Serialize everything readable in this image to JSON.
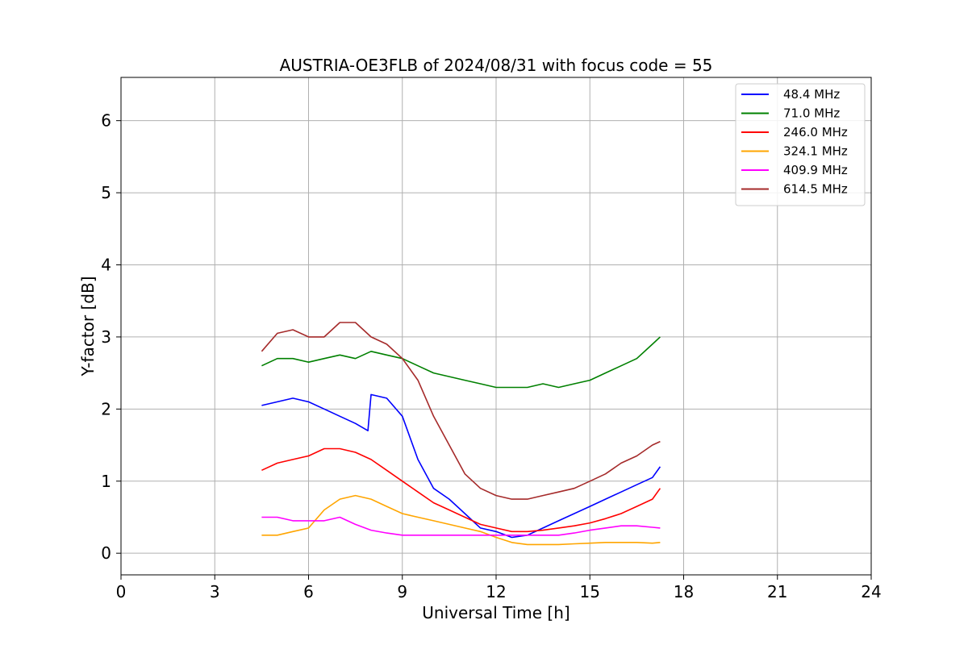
{
  "chart_data": {
    "type": "line",
    "title": "AUSTRIA-OE3FLB of 2024/08/31 with focus code = 55",
    "xlabel": "Universal Time [h]",
    "ylabel": "Y-factor [dB]",
    "xlim": [
      0,
      24
    ],
    "ylim": [
      -0.3,
      6.6
    ],
    "xticks": [
      "0",
      "3",
      "6",
      "9",
      "12",
      "15",
      "18",
      "21",
      "24"
    ],
    "yticks": [
      "0",
      "1",
      "2",
      "3",
      "4",
      "5",
      "6"
    ],
    "grid": true,
    "legend_position": "top-right",
    "series": [
      {
        "name": "48.4 MHz",
        "color": "#0000ff",
        "x": [
          4.5,
          5.0,
          5.5,
          6.0,
          6.5,
          7.0,
          7.5,
          7.9,
          8.0,
          8.5,
          9.0,
          9.5,
          10.0,
          10.5,
          11.0,
          11.5,
          12.0,
          12.5,
          13.0,
          13.5,
          14.0,
          14.5,
          15.0,
          15.5,
          16.0,
          16.5,
          17.0,
          17.25
        ],
        "values": [
          2.05,
          2.1,
          2.15,
          2.1,
          2.0,
          1.9,
          1.8,
          1.7,
          2.2,
          2.15,
          1.9,
          1.3,
          0.9,
          0.75,
          0.55,
          0.35,
          0.3,
          0.22,
          0.25,
          0.35,
          0.45,
          0.55,
          0.65,
          0.75,
          0.85,
          0.95,
          1.05,
          1.2
        ]
      },
      {
        "name": "71.0 MHz",
        "color": "#008000",
        "x": [
          4.5,
          5.0,
          5.5,
          6.0,
          6.5,
          7.0,
          7.5,
          8.0,
          8.5,
          9.0,
          9.5,
          10.0,
          10.5,
          11.0,
          11.5,
          12.0,
          12.5,
          13.0,
          13.5,
          14.0,
          14.5,
          15.0,
          15.5,
          16.0,
          16.5,
          17.0,
          17.25
        ],
        "values": [
          2.6,
          2.7,
          2.7,
          2.65,
          2.7,
          2.75,
          2.7,
          2.8,
          2.75,
          2.7,
          2.6,
          2.5,
          2.45,
          2.4,
          2.35,
          2.3,
          2.3,
          2.3,
          2.35,
          2.3,
          2.35,
          2.4,
          2.5,
          2.6,
          2.7,
          2.9,
          3.0
        ]
      },
      {
        "name": "246.0 MHz",
        "color": "#ff0000",
        "x": [
          4.5,
          5.0,
          5.5,
          6.0,
          6.5,
          7.0,
          7.5,
          8.0,
          8.5,
          9.0,
          9.5,
          10.0,
          10.5,
          11.0,
          11.5,
          12.0,
          12.5,
          13.0,
          13.5,
          14.0,
          14.5,
          15.0,
          15.5,
          16.0,
          16.5,
          17.0,
          17.25
        ],
        "values": [
          1.15,
          1.25,
          1.3,
          1.35,
          1.45,
          1.45,
          1.4,
          1.3,
          1.15,
          1.0,
          0.85,
          0.7,
          0.6,
          0.5,
          0.4,
          0.35,
          0.3,
          0.3,
          0.32,
          0.35,
          0.38,
          0.42,
          0.48,
          0.55,
          0.65,
          0.75,
          0.9
        ]
      },
      {
        "name": "324.1 MHz",
        "color": "#ffa500",
        "x": [
          4.5,
          5.0,
          5.5,
          6.0,
          6.5,
          7.0,
          7.5,
          8.0,
          8.5,
          9.0,
          9.5,
          10.0,
          10.5,
          11.0,
          11.5,
          12.0,
          12.5,
          13.0,
          13.5,
          14.0,
          14.5,
          15.0,
          15.5,
          16.0,
          16.5,
          17.0,
          17.25
        ],
        "values": [
          0.25,
          0.25,
          0.3,
          0.35,
          0.6,
          0.75,
          0.8,
          0.75,
          0.65,
          0.55,
          0.5,
          0.45,
          0.4,
          0.35,
          0.3,
          0.22,
          0.15,
          0.12,
          0.12,
          0.12,
          0.13,
          0.14,
          0.15,
          0.15,
          0.15,
          0.14,
          0.15
        ]
      },
      {
        "name": "409.9 MHz",
        "color": "#ff00ff",
        "x": [
          4.5,
          5.0,
          5.5,
          6.0,
          6.5,
          7.0,
          7.5,
          8.0,
          8.5,
          9.0,
          9.5,
          10.0,
          10.5,
          11.0,
          11.5,
          12.0,
          12.5,
          13.0,
          13.5,
          14.0,
          14.5,
          15.0,
          15.5,
          16.0,
          16.5,
          17.0,
          17.25
        ],
        "values": [
          0.5,
          0.5,
          0.45,
          0.45,
          0.45,
          0.5,
          0.4,
          0.32,
          0.28,
          0.25,
          0.25,
          0.25,
          0.25,
          0.25,
          0.25,
          0.25,
          0.25,
          0.25,
          0.25,
          0.25,
          0.28,
          0.32,
          0.35,
          0.38,
          0.38,
          0.36,
          0.35
        ]
      },
      {
        "name": "614.5 MHz",
        "color": "#a52a2a",
        "x": [
          4.5,
          5.0,
          5.5,
          6.0,
          6.5,
          7.0,
          7.5,
          8.0,
          8.5,
          9.0,
          9.5,
          10.0,
          10.5,
          11.0,
          11.5,
          12.0,
          12.5,
          13.0,
          13.5,
          14.0,
          14.5,
          15.0,
          15.5,
          16.0,
          16.5,
          17.0,
          17.25
        ],
        "values": [
          2.8,
          3.05,
          3.1,
          3.0,
          3.0,
          3.2,
          3.2,
          3.0,
          2.9,
          2.7,
          2.4,
          1.9,
          1.5,
          1.1,
          0.9,
          0.8,
          0.75,
          0.75,
          0.8,
          0.85,
          0.9,
          1.0,
          1.1,
          1.25,
          1.35,
          1.5,
          1.55
        ]
      }
    ]
  }
}
